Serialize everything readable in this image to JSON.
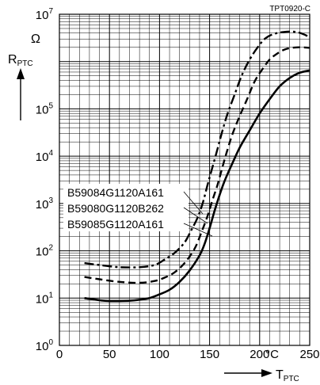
{
  "chart_data": {
    "type": "line",
    "figure_code": "TPT0920-C",
    "ylabel": "R",
    "ylabel_sub": "PTC",
    "yunit": "Ω",
    "xlabel": "T",
    "xlabel_sub": "PTC",
    "xunit": "°C",
    "yscale": "log",
    "xlim": [
      0,
      250
    ],
    "ylim": [
      1,
      10000000
    ],
    "x_ticks": [
      0,
      50,
      100,
      150,
      200,
      250
    ],
    "x_tick_labels": [
      "0",
      "50",
      "100",
      "150",
      "200",
      "250"
    ],
    "y_ticks": [
      1,
      10,
      100,
      1000,
      10000,
      100000,
      10000000
    ],
    "y_tick_labels": [
      {
        "base": "10",
        "exp": "0"
      },
      {
        "base": "10",
        "exp": "1"
      },
      {
        "base": "10",
        "exp": "2"
      },
      {
        "base": "10",
        "exp": "3"
      },
      {
        "base": "10",
        "exp": "4"
      },
      {
        "base": "10",
        "exp": "5"
      },
      {
        "base": "10",
        "exp": "7"
      }
    ],
    "grid": true,
    "series": [
      {
        "name": "B59084G1120A161",
        "line_style": "dashdot",
        "x": [
          25,
          40,
          60,
          80,
          95,
          105,
          115,
          125,
          132,
          138,
          143,
          148,
          152,
          157,
          162,
          168,
          175,
          182,
          190,
          198,
          205,
          212,
          220,
          228,
          237,
          245,
          250
        ],
        "y": [
          55,
          50,
          45,
          45,
          50,
          65,
          90,
          150,
          280,
          500,
          1000,
          2500,
          5000,
          12000,
          30000,
          80000,
          200000,
          500000,
          1100000,
          2000000,
          3000000,
          3700000,
          4100000,
          4300000,
          4200000,
          3700000,
          3200000
        ]
      },
      {
        "name": "B59080G1120B262",
        "line_style": "dashed",
        "x": [
          25,
          40,
          60,
          80,
          95,
          105,
          115,
          125,
          135,
          142,
          148,
          153,
          158,
          163,
          168,
          173,
          180,
          188,
          195,
          203,
          210,
          218,
          225,
          232,
          240,
          245,
          250
        ],
        "y": [
          28,
          25,
          22,
          21,
          23,
          27,
          35,
          55,
          110,
          250,
          550,
          1200,
          2500,
          6000,
          14000,
          30000,
          70000,
          170000,
          380000,
          700000,
          1100000,
          1500000,
          1800000,
          1950000,
          2000000,
          1990000,
          1950000
        ]
      },
      {
        "name": "B59085G1120A161",
        "line_style": "solid",
        "x": [
          25,
          40,
          50,
          60,
          70,
          80,
          90,
          100,
          110,
          120,
          130,
          140,
          145,
          150,
          155,
          160,
          165,
          172,
          180,
          190,
          200,
          210,
          220,
          230,
          240,
          250
        ],
        "y": [
          10,
          9,
          8.7,
          8.7,
          8.8,
          9.2,
          10,
          12,
          15,
          22,
          38,
          80,
          140,
          300,
          700,
          1500,
          3000,
          6500,
          15000,
          35000,
          80000,
          160000,
          300000,
          450000,
          580000,
          650000
        ]
      }
    ],
    "legend_placement": "center-left, with leader lines to curves"
  }
}
